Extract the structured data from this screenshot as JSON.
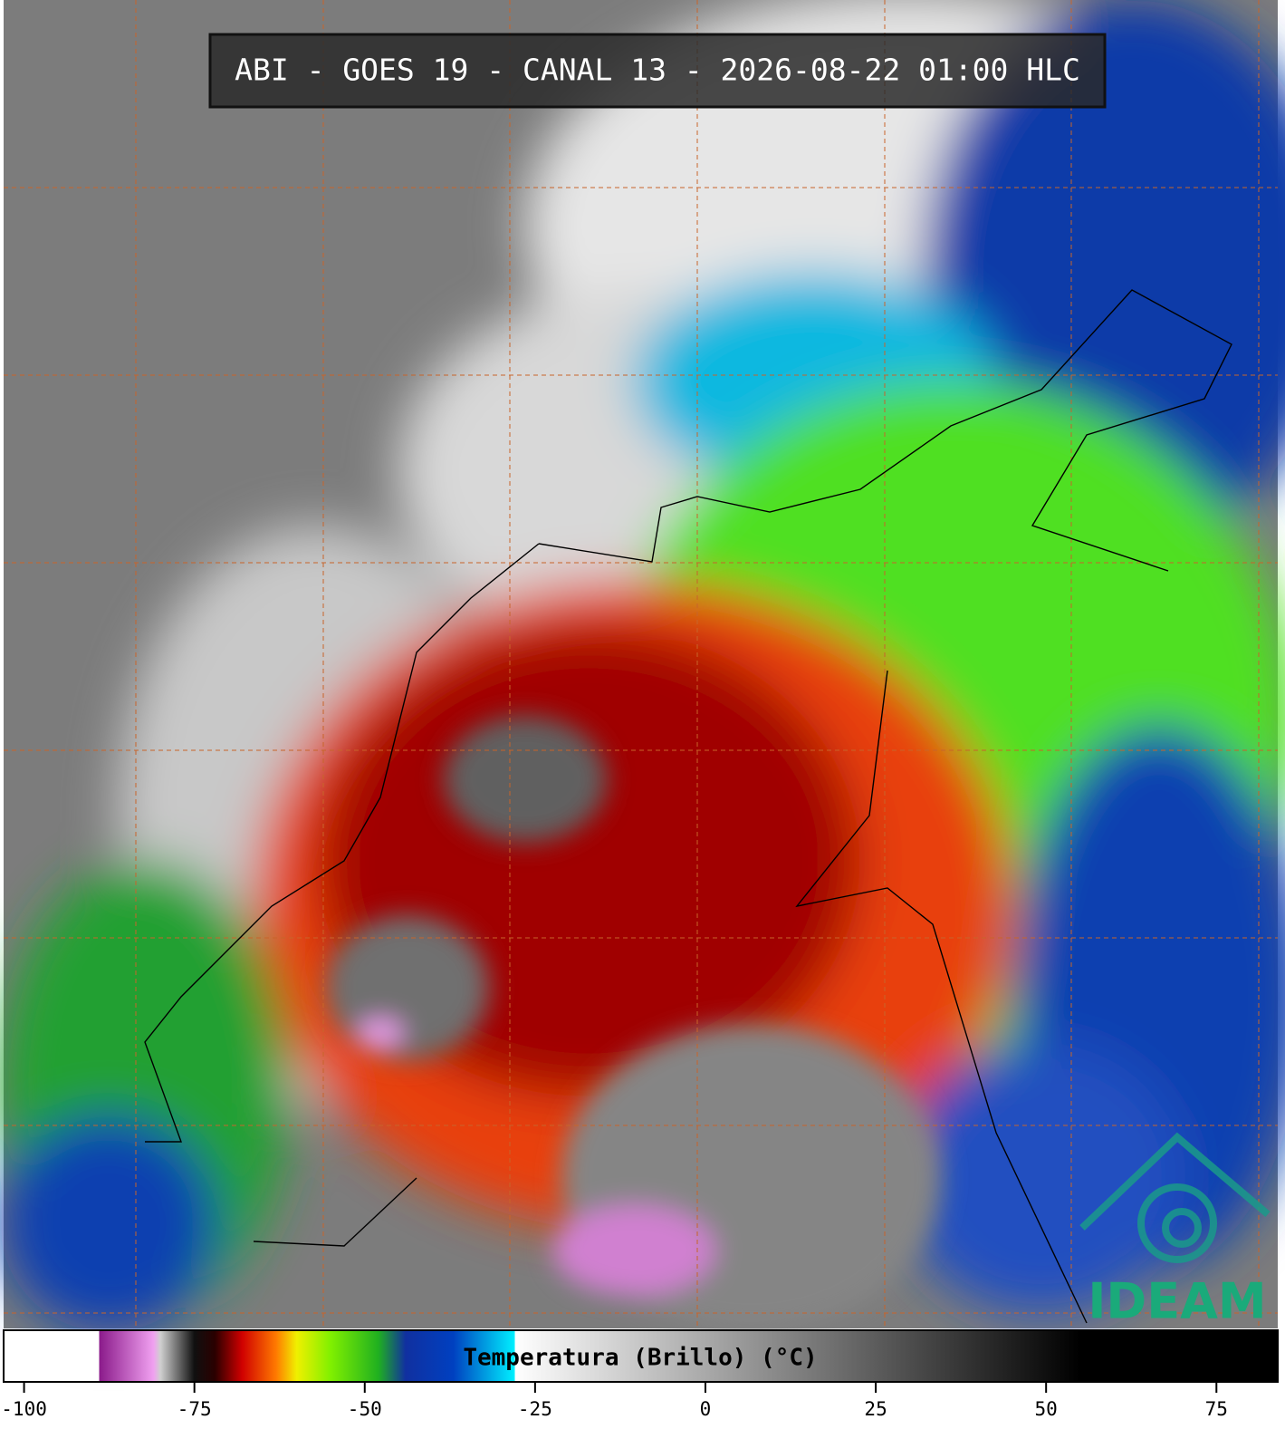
{
  "header": {
    "title": "ABI - GOES 19 - CANAL 13 - 2026-08-22 01:00 HLC"
  },
  "logo": {
    "text": "IDEAM"
  },
  "colorbar": {
    "label": "Temperatura (Brillo) (°C)",
    "lim": [
      -103,
      84
    ],
    "ticks": [
      -100,
      -75,
      -50,
      -25,
      0,
      25,
      50,
      75
    ],
    "stops": [
      {
        "value": -103,
        "color": "#ffffff"
      },
      {
        "value": -89,
        "color": "#ffffff"
      },
      {
        "value": -89,
        "color": "#8a1a8a"
      },
      {
        "value": -81,
        "color": "#f0a0f0"
      },
      {
        "value": -80,
        "color": "#d0d0d0"
      },
      {
        "value": -75,
        "color": "#101010"
      },
      {
        "value": -72,
        "color": "#2a0000"
      },
      {
        "value": -68,
        "color": "#d00000"
      },
      {
        "value": -63,
        "color": "#ff7a00"
      },
      {
        "value": -60,
        "color": "#f0f000"
      },
      {
        "value": -55,
        "color": "#80f000"
      },
      {
        "value": -48,
        "color": "#20b020"
      },
      {
        "value": -44,
        "color": "#1030a0"
      },
      {
        "value": -37,
        "color": "#0040c0"
      },
      {
        "value": -28,
        "color": "#00f0ff"
      },
      {
        "value": -28,
        "color": "#ffffff"
      },
      {
        "value": 55,
        "color": "#000000"
      },
      {
        "value": 84,
        "color": "#000000"
      }
    ]
  }
}
